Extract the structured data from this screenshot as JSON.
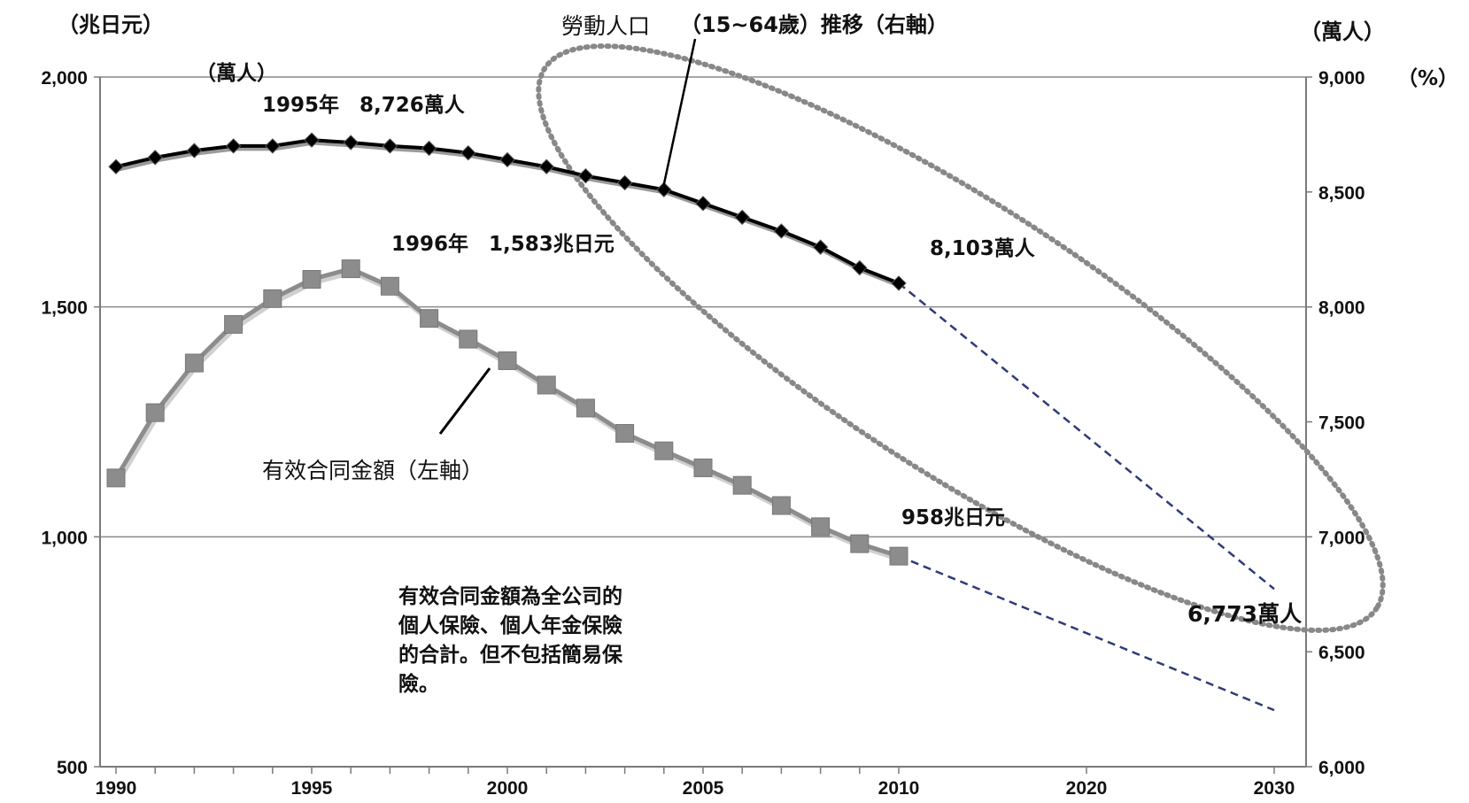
{
  "chart_data": {
    "type": "line",
    "axes": {
      "left_unit": "（兆日元）",
      "right_unit_1": "（萬人）",
      "right_unit_2": "（%）",
      "left_ylim": [
        500,
        2000
      ],
      "right_ylim": [
        6000,
        9000
      ],
      "left_ticks": [
        "2,000",
        "1,500",
        "1,000",
        "500"
      ],
      "right_ticks": [
        "9,000",
        "8,500",
        "8,000",
        "7,500",
        "7,000",
        "6,500",
        "6,000"
      ],
      "x_ticks": [
        "1990",
        "1995",
        "2000",
        "2005",
        "2010",
        "2020",
        "2030"
      ]
    },
    "series": [
      {
        "name": "勞動人口（15~64歲）推移（右軸）",
        "axis": "right",
        "color": "#000000",
        "x": [
          1990,
          1991,
          1992,
          1993,
          1994,
          1995,
          1996,
          1997,
          1998,
          1999,
          2000,
          2001,
          2002,
          2003,
          2004,
          2005,
          2006,
          2007,
          2008,
          2009,
          2010
        ],
        "values": [
          8610,
          8650,
          8680,
          8700,
          8700,
          8726,
          8715,
          8700,
          8690,
          8670,
          8640,
          8610,
          8570,
          8540,
          8510,
          8450,
          8390,
          8330,
          8260,
          8170,
          8103
        ],
        "projection": {
          "x": [
            2010,
            2030
          ],
          "values": [
            8103,
            6773
          ]
        }
      },
      {
        "name": "有效合同金額（左軸）",
        "axis": "left",
        "color": "#8c8c8c",
        "x": [
          1990,
          1991,
          1992,
          1993,
          1994,
          1995,
          1996,
          1997,
          1998,
          1999,
          2000,
          2001,
          2002,
          2003,
          2004,
          2005,
          2006,
          2007,
          2008,
          2009,
          2010
        ],
        "values": [
          1128,
          1270,
          1378,
          1462,
          1518,
          1560,
          1583,
          1545,
          1475,
          1430,
          1383,
          1330,
          1280,
          1225,
          1187,
          1150,
          1112,
          1068,
          1022,
          985,
          958
        ],
        "projection": {
          "x": [
            2010,
            2030
          ],
          "values": [
            958,
            623
          ]
        }
      }
    ],
    "annotations": {
      "workforce_title_a": "勞動人口",
      "workforce_title_b": "（15~64歲）推移（右軸）",
      "peak_unit": "（萬人）",
      "peak_workforce": "1995年　8,726萬人",
      "peak_amount": "1996年　1,583兆日元",
      "end_workforce": "8,103萬人",
      "end_amount": "958兆日元",
      "proj_workforce": "6,773萬人",
      "amount_title": "有效合同金額（左軸）",
      "note_lines": [
        "有效合同金額為全公司的",
        "個人保險、個人年金保險",
        "的合計。但不包括簡易保",
        "險。"
      ]
    }
  }
}
